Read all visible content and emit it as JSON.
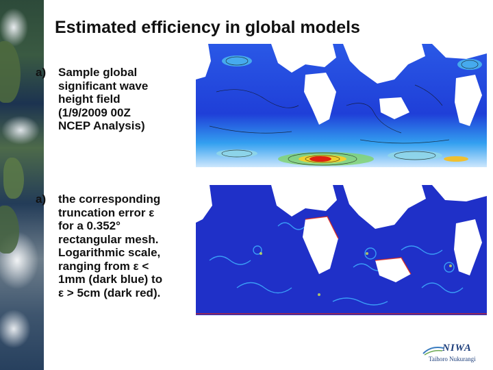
{
  "slide": {
    "title": "Estimated efficiency in global models",
    "items": [
      {
        "marker": "a)",
        "lines": [
          "Sample global",
          "significant wave",
          "height field",
          "(1/9/2009 00Z",
          "NCEP Analysis)"
        ]
      },
      {
        "marker": "a)",
        "lines": [
          "the corresponding",
          "truncation error ε",
          "for a 0.352°",
          "rectangular mesh.",
          "Logarithmic scale,",
          "ranging from ε <",
          "1mm (dark blue) to",
          "ε > 5cm (dark red)."
        ]
      }
    ],
    "logo": {
      "name": "NIWA",
      "tagline": "Taihoro Nukurangi"
    },
    "colors": {
      "ocean_deep": "#1a2fd0",
      "ocean_mid": "#3a7cf0",
      "high": "#e02010",
      "land": "#ffffff"
    }
  }
}
